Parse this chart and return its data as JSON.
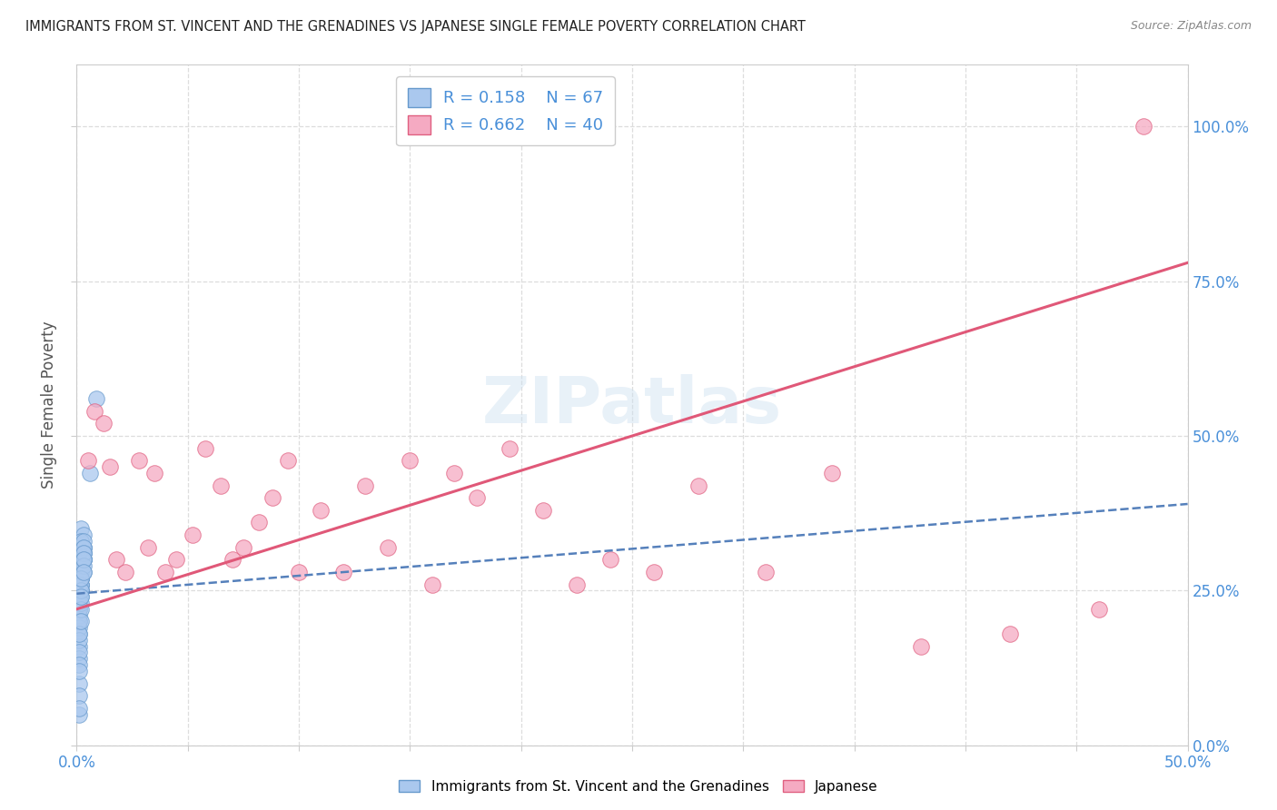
{
  "title": "IMMIGRANTS FROM ST. VINCENT AND THE GRENADINES VS JAPANESE SINGLE FEMALE POVERTY CORRELATION CHART",
  "source": "Source: ZipAtlas.com",
  "ylabel": "Single Female Poverty",
  "xlim": [
    0,
    0.5
  ],
  "ylim": [
    0,
    1.1
  ],
  "ytick_labels": [
    "0.0%",
    "25.0%",
    "50.0%",
    "75.0%",
    "100.0%"
  ],
  "ytick_vals": [
    0.0,
    0.25,
    0.5,
    0.75,
    1.0
  ],
  "xtick_labels_only_ends": [
    "0.0%",
    "50.0%"
  ],
  "xtick_vals_all": [
    0.0,
    0.05,
    0.1,
    0.15,
    0.2,
    0.25,
    0.3,
    0.35,
    0.4,
    0.45,
    0.5
  ],
  "xtick_minor_vals": [
    0.05,
    0.1,
    0.15,
    0.2,
    0.25,
    0.3,
    0.35,
    0.4,
    0.45
  ],
  "legend_labels_bottom": [
    "Immigrants from St. Vincent and the Grenadines",
    "Japanese"
  ],
  "blue_R": 0.158,
  "blue_N": 67,
  "pink_R": 0.662,
  "pink_N": 40,
  "blue_color": "#aac8ee",
  "pink_color": "#f5aac2",
  "blue_edge_color": "#6699cc",
  "pink_edge_color": "#e06080",
  "blue_line_color": "#5580bb",
  "pink_line_color": "#e05878",
  "title_color": "#222222",
  "axis_label_color": "#555555",
  "tick_label_color": "#4a90d9",
  "grid_color": "#dddddd",
  "background_color": "#ffffff",
  "blue_scatter": {
    "x": [
      0.001,
      0.002,
      0.001,
      0.003,
      0.002,
      0.001,
      0.003,
      0.002,
      0.001,
      0.002,
      0.003,
      0.001,
      0.002,
      0.001,
      0.003,
      0.002,
      0.001,
      0.002,
      0.001,
      0.003,
      0.002,
      0.001,
      0.003,
      0.002,
      0.001,
      0.002,
      0.003,
      0.001,
      0.002,
      0.003,
      0.001,
      0.002,
      0.001,
      0.003,
      0.002,
      0.001,
      0.002,
      0.003,
      0.001,
      0.002,
      0.001,
      0.003,
      0.002,
      0.001,
      0.002,
      0.001,
      0.003,
      0.002,
      0.001,
      0.002,
      0.003,
      0.001,
      0.002,
      0.001,
      0.003,
      0.002,
      0.001,
      0.002,
      0.003,
      0.001,
      0.002,
      0.001,
      0.003,
      0.002,
      0.001,
      0.006,
      0.009
    ],
    "y": [
      0.3,
      0.35,
      0.28,
      0.32,
      0.27,
      0.31,
      0.34,
      0.29,
      0.26,
      0.33,
      0.3,
      0.24,
      0.28,
      0.22,
      0.31,
      0.29,
      0.2,
      0.27,
      0.18,
      0.3,
      0.25,
      0.23,
      0.32,
      0.28,
      0.21,
      0.26,
      0.33,
      0.19,
      0.27,
      0.31,
      0.16,
      0.28,
      0.23,
      0.3,
      0.26,
      0.22,
      0.29,
      0.32,
      0.17,
      0.25,
      0.14,
      0.28,
      0.24,
      0.2,
      0.27,
      0.15,
      0.3,
      0.23,
      0.18,
      0.26,
      0.31,
      0.13,
      0.25,
      0.1,
      0.29,
      0.22,
      0.12,
      0.24,
      0.3,
      0.08,
      0.27,
      0.05,
      0.28,
      0.2,
      0.06,
      0.44,
      0.56
    ]
  },
  "pink_scatter": {
    "x": [
      0.005,
      0.008,
      0.012,
      0.018,
      0.015,
      0.022,
      0.028,
      0.035,
      0.032,
      0.04,
      0.045,
      0.052,
      0.058,
      0.065,
      0.07,
      0.075,
      0.082,
      0.088,
      0.095,
      0.1,
      0.11,
      0.12,
      0.13,
      0.14,
      0.15,
      0.16,
      0.17,
      0.18,
      0.195,
      0.21,
      0.225,
      0.24,
      0.26,
      0.28,
      0.31,
      0.34,
      0.38,
      0.42,
      0.46,
      0.48
    ],
    "y": [
      0.46,
      0.54,
      0.52,
      0.3,
      0.45,
      0.28,
      0.46,
      0.44,
      0.32,
      0.28,
      0.3,
      0.34,
      0.48,
      0.42,
      0.3,
      0.32,
      0.36,
      0.4,
      0.46,
      0.28,
      0.38,
      0.28,
      0.42,
      0.32,
      0.46,
      0.26,
      0.44,
      0.4,
      0.48,
      0.38,
      0.26,
      0.3,
      0.28,
      0.42,
      0.28,
      0.44,
      0.16,
      0.18,
      0.22,
      1.0
    ]
  },
  "blue_line_endpoints_x": [
    0.0,
    0.5
  ],
  "blue_line_endpoints_y": [
    0.245,
    0.39
  ],
  "pink_line_endpoints_x": [
    0.0,
    0.5
  ],
  "pink_line_endpoints_y": [
    0.22,
    0.78
  ]
}
